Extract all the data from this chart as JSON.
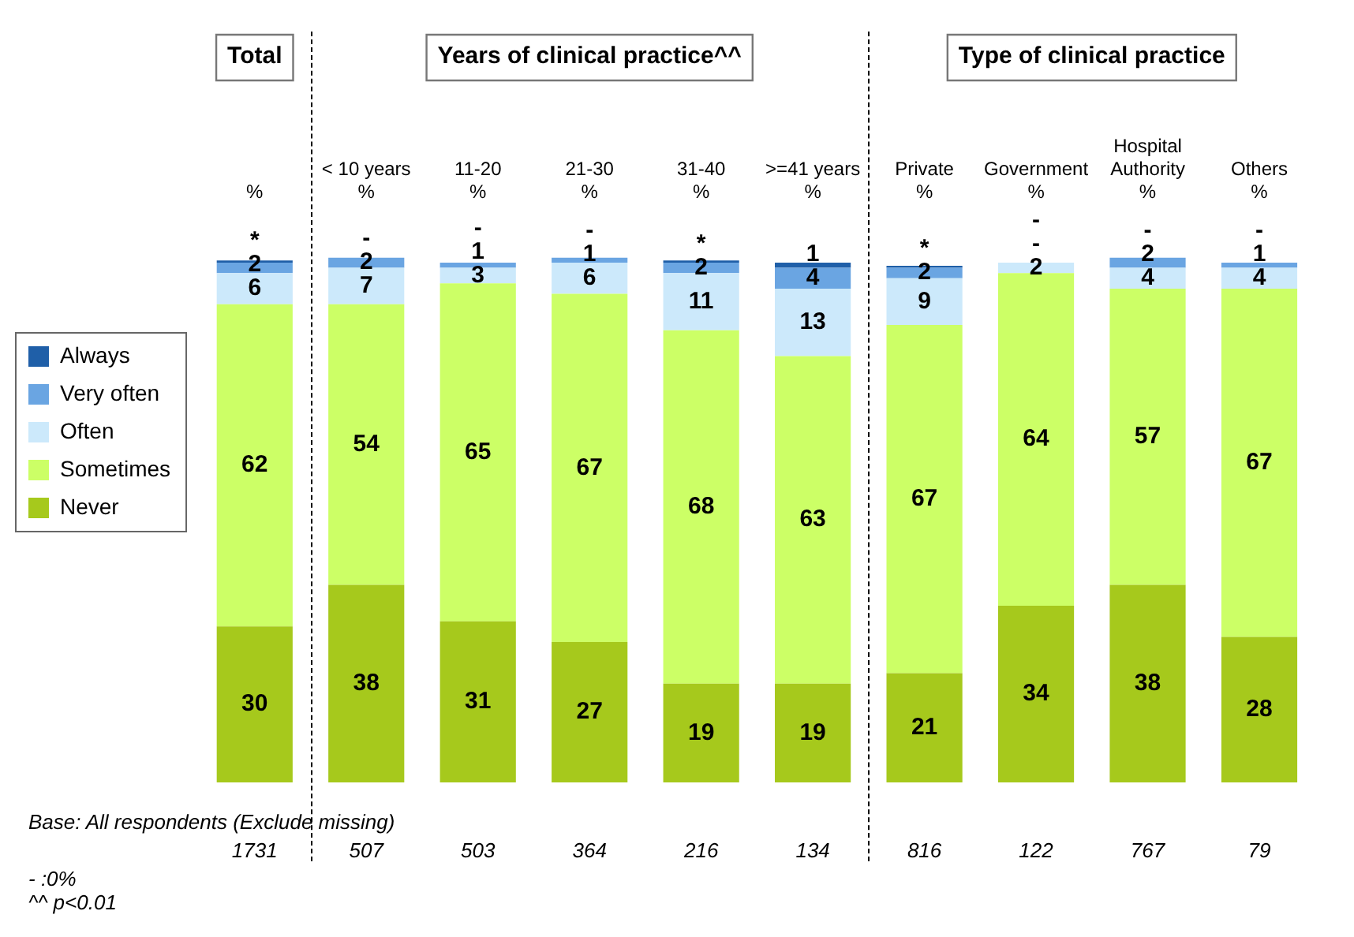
{
  "chart_data": {
    "type": "bar",
    "stacked": true,
    "relative": false,
    "legend": "left",
    "grid": false,
    "categories": [
      "%",
      "< 10 years\n%",
      "11-20\n%",
      "21-30\n%",
      "31-40\n%",
      ">=41 years\n%",
      "Private\n%",
      "Government\n%",
      "Hospital\nAuthority\n%",
      "Others\n%"
    ],
    "series": [
      {
        "name": "Never",
        "color": "#a6c91c",
        "values": [
          30,
          38,
          31,
          27,
          19,
          19,
          21,
          34,
          38,
          28
        ],
        "value_labels": [
          "30",
          "38",
          "31",
          "27",
          "19",
          "19",
          "21",
          "34",
          "38",
          "28"
        ]
      },
      {
        "name": "Sometimes",
        "color": "#ccff66",
        "values": [
          62,
          54,
          65,
          67,
          68,
          63,
          67,
          64,
          57,
          67
        ],
        "value_labels": [
          "62",
          "54",
          "65",
          "67",
          "68",
          "63",
          "67",
          "64",
          "57",
          "67"
        ]
      },
      {
        "name": "Often",
        "color": "#cce9fb",
        "values": [
          6,
          7,
          3,
          6,
          11,
          13,
          9,
          2,
          4,
          4
        ],
        "value_labels": [
          "6",
          "7",
          "3",
          "6",
          "11",
          "13",
          "9",
          "2",
          "4",
          "4"
        ]
      },
      {
        "name": "Very often",
        "color": "#6aa5e2",
        "values": [
          2,
          2,
          1,
          1,
          2,
          4,
          2,
          0,
          2,
          1
        ],
        "value_labels": [
          "2",
          "2",
          "1",
          "1",
          "2",
          "4",
          "2",
          "-",
          "2",
          "1"
        ]
      },
      {
        "name": "Always",
        "color": "#1f5fa8",
        "values": [
          0.4,
          0,
          0,
          0,
          0.4,
          1,
          0.4,
          0,
          0,
          0
        ],
        "value_labels": [
          "*",
          "-",
          "-",
          "-",
          "*",
          "1",
          "*",
          "-",
          "-",
          "-"
        ]
      }
    ],
    "annotations": [
      "Total",
      "Years of clinical practice^^",
      "Type of clinical practice",
      "Base: All respondents (Exclude missing)",
      "1731",
      "507",
      "503",
      "364",
      "216",
      "134",
      "816",
      "122",
      "767",
      "79",
      "- :0%",
      "^^ p<0.01"
    ]
  }
}
